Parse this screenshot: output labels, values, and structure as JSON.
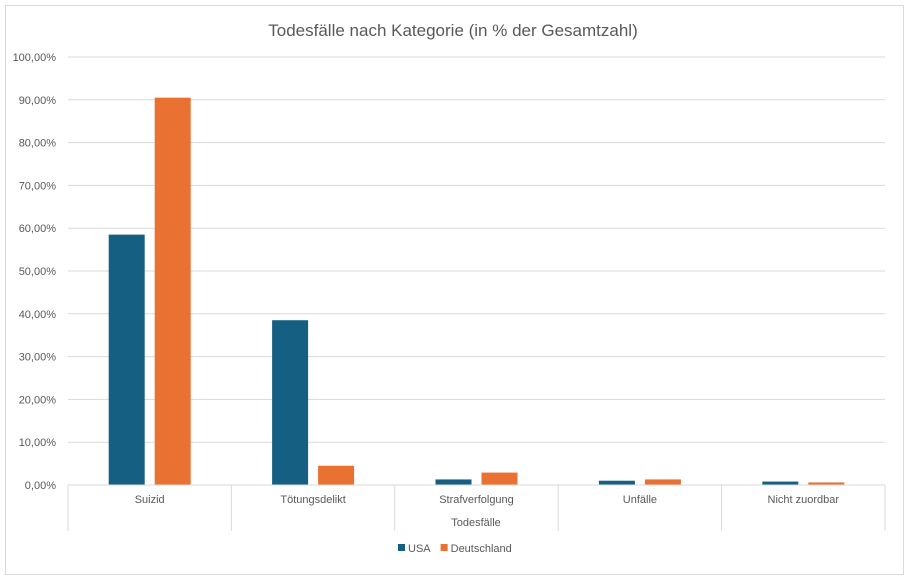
{
  "chart_data": {
    "type": "bar",
    "title": "Todesfälle nach Kategorie (in % der Gesamtzahl)",
    "xlabel": "Todesfälle",
    "ylabel": "",
    "categories": [
      "Suizid",
      "Tötungsdelikt",
      "Strafverfolgung",
      "Unfälle",
      "Nicht zuordbar"
    ],
    "series": [
      {
        "name": "USA",
        "color": "#156082",
        "values": [
          58.5,
          38.5,
          1.3,
          1.0,
          0.8
        ]
      },
      {
        "name": "Deutschland",
        "color": "#e97132",
        "values": [
          90.5,
          4.5,
          2.9,
          1.3,
          0.6
        ]
      }
    ],
    "ylim": [
      0,
      100
    ],
    "yticks": [
      0,
      10,
      20,
      30,
      40,
      50,
      60,
      70,
      80,
      90,
      100
    ],
    "ytick_labels": [
      "0,00%",
      "10,00%",
      "20,00%",
      "30,00%",
      "40,00%",
      "50,00%",
      "60,00%",
      "70,00%",
      "80,00%",
      "90,00%",
      "100,00%"
    ],
    "grid": true,
    "legend_position": "bottom"
  }
}
